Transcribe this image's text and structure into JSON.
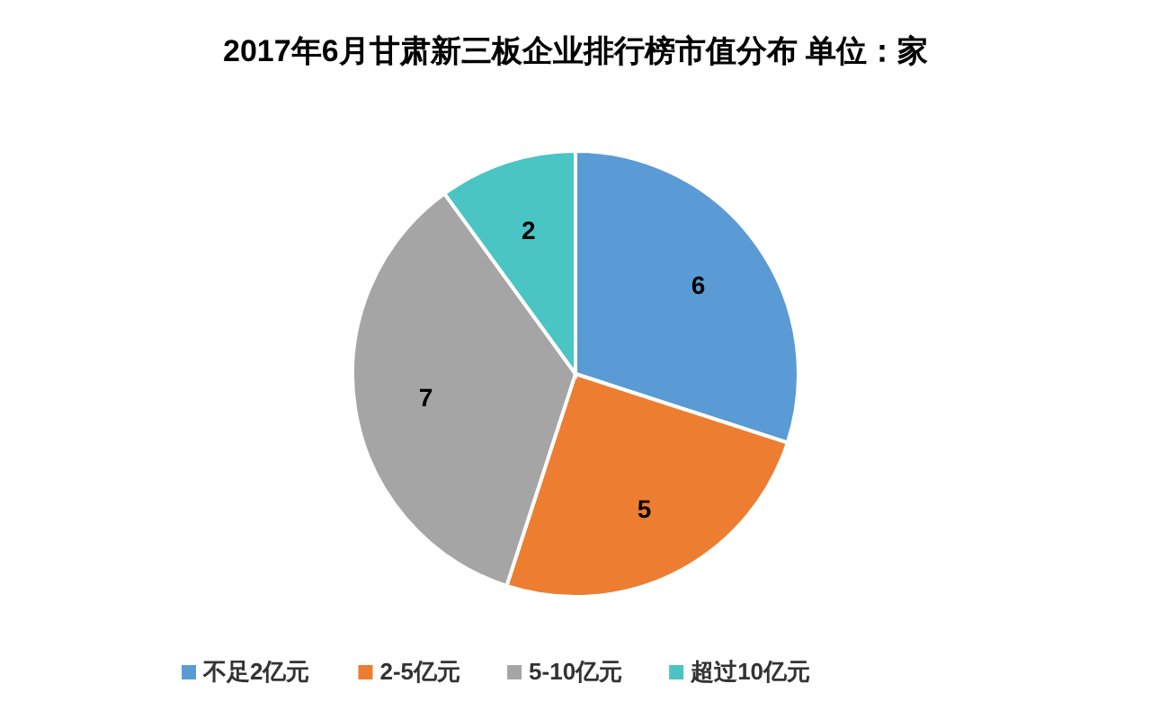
{
  "chart_data": {
    "type": "pie",
    "title": "2017年6月甘肃新三板企业排行榜市值分布 单位：家",
    "categories": [
      "不足2亿元",
      "2-5亿元",
      "5-10亿元",
      "超过10亿元"
    ],
    "values": [
      6,
      5,
      7,
      2
    ],
    "colors": [
      "#5b9bd5",
      "#ed7d31",
      "#a5a5a5",
      "#4bc4c4"
    ],
    "data_labels": true,
    "legend": "bottom"
  }
}
